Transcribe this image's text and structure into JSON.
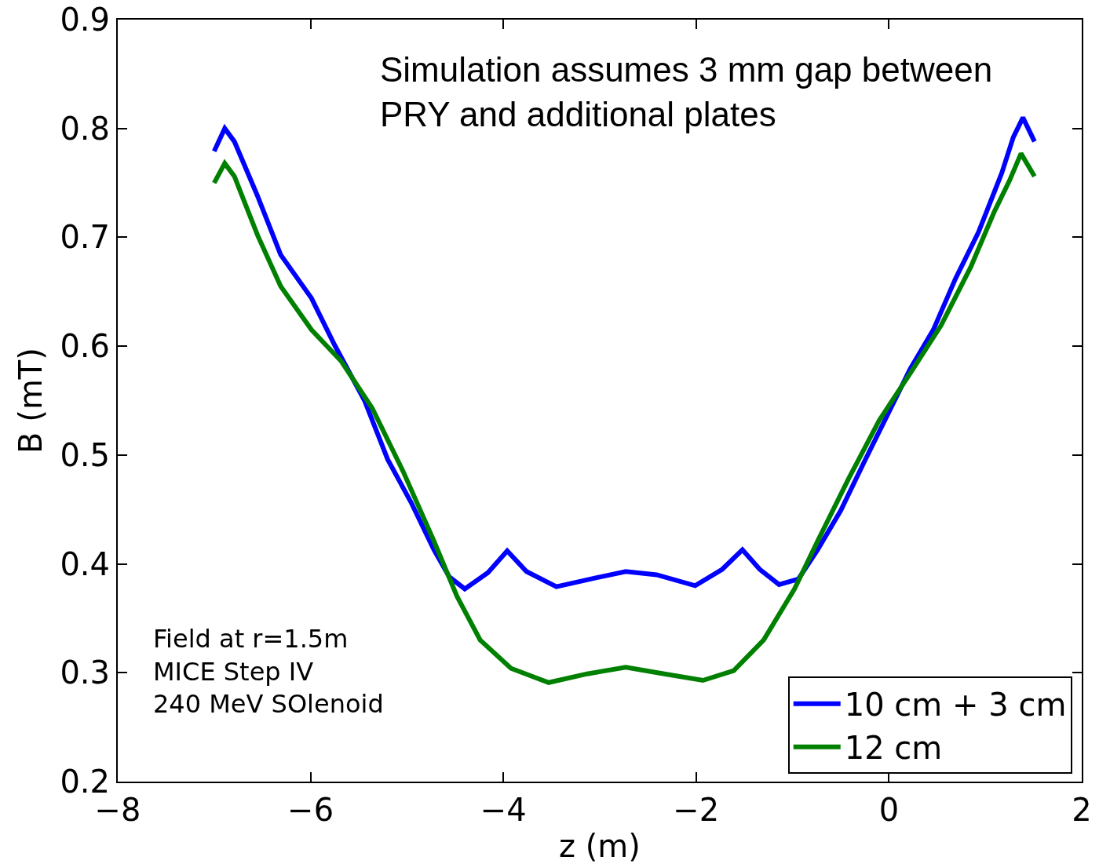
{
  "chart_data": {
    "type": "line",
    "xlabel": "z (m)",
    "ylabel": "B (mT)",
    "xlim": [
      -8,
      2
    ],
    "ylim": [
      0.2,
      0.9
    ],
    "xticks": [
      {
        "value": -8,
        "label": "−8"
      },
      {
        "value": -6,
        "label": "−6"
      },
      {
        "value": -4,
        "label": "−4"
      },
      {
        "value": -2,
        "label": "−2"
      },
      0,
      2
    ],
    "yticks": [
      {
        "value": 0.2,
        "label": "0.2"
      },
      {
        "value": 0.3,
        "label": "0.3"
      },
      {
        "value": 0.4,
        "label": "0.4"
      },
      {
        "value": 0.5,
        "label": "0.5"
      },
      {
        "value": 0.6,
        "label": "0.6"
      },
      {
        "value": 0.7,
        "label": "0.7"
      },
      {
        "value": 0.8,
        "label": "0.8"
      },
      {
        "value": 0.9,
        "label": "0.9"
      }
    ],
    "grid": false,
    "legend": "bottom right",
    "marker": "none",
    "line_style": "solid",
    "annotations": [
      "Simulation assumes 3 mm gap between\nPRY and additional plates",
      "Field at r=1.5m\nMICE Step IV\n240 MeV SOlenoid"
    ],
    "series": [
      {
        "name": "10 cm + 3 cm",
        "color": "#0000ff",
        "x": [
          -7.0,
          -6.89,
          -6.79,
          -6.55,
          -6.31,
          -5.99,
          -5.75,
          -5.44,
          -5.2,
          -4.96,
          -4.72,
          -4.56,
          -4.4,
          -4.16,
          -3.96,
          -3.76,
          -3.45,
          -3.05,
          -2.73,
          -2.41,
          -2.01,
          -1.73,
          -1.52,
          -1.34,
          -1.14,
          -0.94,
          -0.74,
          -0.5,
          -0.26,
          -0.02,
          0.22,
          0.46,
          0.69,
          0.93,
          1.17,
          1.29,
          1.39,
          1.51
        ],
        "values": [
          0.779,
          0.8,
          0.788,
          0.738,
          0.684,
          0.644,
          0.601,
          0.55,
          0.496,
          0.457,
          0.413,
          0.388,
          0.377,
          0.392,
          0.412,
          0.393,
          0.379,
          0.387,
          0.393,
          0.39,
          0.38,
          0.395,
          0.413,
          0.395,
          0.381,
          0.386,
          0.413,
          0.449,
          0.493,
          0.536,
          0.579,
          0.615,
          0.662,
          0.705,
          0.759,
          0.792,
          0.81,
          0.788
        ]
      },
      {
        "name": "12 cm",
        "color": "#008000",
        "x": [
          -7.0,
          -6.89,
          -6.79,
          -6.55,
          -6.31,
          -5.99,
          -5.68,
          -5.36,
          -5.04,
          -4.72,
          -4.48,
          -4.24,
          -3.92,
          -3.53,
          -3.13,
          -2.73,
          -2.33,
          -1.93,
          -1.61,
          -1.3,
          -0.98,
          -0.74,
          -0.42,
          -0.1,
          0.22,
          0.54,
          0.85,
          1.09,
          1.25,
          1.37,
          1.51
        ],
        "values": [
          0.75,
          0.768,
          0.756,
          0.702,
          0.655,
          0.615,
          0.586,
          0.543,
          0.485,
          0.421,
          0.37,
          0.33,
          0.304,
          0.291,
          0.299,
          0.305,
          0.299,
          0.293,
          0.302,
          0.33,
          0.377,
          0.421,
          0.478,
          0.532,
          0.575,
          0.619,
          0.673,
          0.723,
          0.752,
          0.777,
          0.756
        ]
      }
    ]
  }
}
